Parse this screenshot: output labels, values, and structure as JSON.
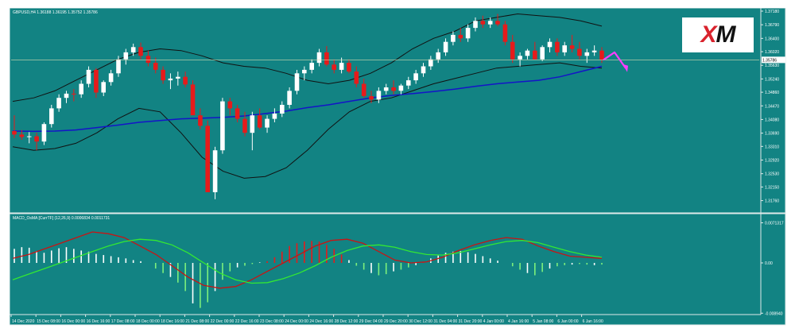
{
  "symbol_header": "GBPUSD,H4 1.36188 1.36195 1.35752 1.35786",
  "indicator_header": "MACD_OsMA [CurrTF] (12,26,9) 0.0006834 0.0011731",
  "logo": {
    "mark": "X",
    "text": "M"
  },
  "colors": {
    "background": "#ffffff",
    "plot": "#128383",
    "grid_border": "#dfe9e9",
    "bull_candle": "#ffffff",
    "bear_candle": "#e61b1b",
    "bands": "#111111",
    "ma": "#1414c8",
    "macd_line": "#c81414",
    "signal_line": "#33e833",
    "hist_pos": "#ffffff",
    "hist_neg": "#7cf07c",
    "forecast_arrow": "#ff3cff",
    "price_line": "#d4dcb0"
  },
  "chart_data": [
    {
      "type": "candlestick",
      "series_desc": "GBPUSD H4",
      "ylim": [
        1.315,
        1.3718
      ],
      "y_ticks": [
        "1.37180",
        "1.36790",
        "1.36400",
        "1.36020",
        "1.35630",
        "1.35240",
        "1.34860",
        "1.34470",
        "1.34080",
        "1.33690",
        "1.33310",
        "1.32920",
        "1.32530",
        "1.32150",
        "1.31760"
      ],
      "y_tick_values": [
        1.3718,
        1.3679,
        1.364,
        1.3602,
        1.3563,
        1.3524,
        1.3486,
        1.3447,
        1.3408,
        1.3369,
        1.3331,
        1.3292,
        1.3253,
        1.3215,
        1.3176
      ],
      "current_price_label": "1.35786",
      "current_price": 1.35786,
      "x_ticks": [
        "14 Dec 2020",
        "15 Dec 08:00",
        "16 Dec 00:00",
        "16 Dec 16:00",
        "17 Dec 08:00",
        "18 Dec 00:00",
        "18 Dec 16:00",
        "21 Dec 08:00",
        "22 Dec 00:00",
        "22 Dec 16:00",
        "23 Dec 08:00",
        "24 Dec 00:00",
        "24 Dec 16:00",
        "28 Dec 12:00",
        "29 Dec 04:00",
        "29 Dec 20:00",
        "30 Dec 12:00",
        "31 Dec 04:00",
        "31 Dec 20:00",
        "4 Jan 00:00",
        "4 Jan 16:00",
        "5 Jan 08:00",
        "6 Jan 00:00",
        "6 Jan 16:00"
      ],
      "candles_ohlc": [
        [
          1.3375,
          1.342,
          1.3355,
          1.3365
        ],
        [
          1.3365,
          1.3378,
          1.335,
          1.3358
        ],
        [
          1.3358,
          1.3372,
          1.334,
          1.336
        ],
        [
          1.336,
          1.337,
          1.332,
          1.3345
        ],
        [
          1.3345,
          1.34,
          1.3335,
          1.3395
        ],
        [
          1.3395,
          1.345,
          1.3385,
          1.344
        ],
        [
          1.344,
          1.348,
          1.343,
          1.347
        ],
        [
          1.347,
          1.349,
          1.3455,
          1.3482
        ],
        [
          1.3482,
          1.3495,
          1.346,
          1.348
        ],
        [
          1.348,
          1.352,
          1.347,
          1.351
        ],
        [
          1.351,
          1.356,
          1.35,
          1.355
        ],
        [
          1.355,
          1.3555,
          1.347,
          1.3485
        ],
        [
          1.3485,
          1.352,
          1.3475,
          1.3515
        ],
        [
          1.3515,
          1.355,
          1.3505,
          1.354
        ],
        [
          1.354,
          1.359,
          1.353,
          1.358
        ],
        [
          1.358,
          1.361,
          1.3565,
          1.36
        ],
        [
          1.36,
          1.3625,
          1.359,
          1.3615
        ],
        [
          1.3615,
          1.3628,
          1.358,
          1.359
        ],
        [
          1.359,
          1.3605,
          1.356,
          1.357
        ],
        [
          1.357,
          1.3585,
          1.354,
          1.355
        ],
        [
          1.355,
          1.356,
          1.351,
          1.352
        ],
        [
          1.352,
          1.354,
          1.3495,
          1.3525
        ],
        [
          1.3525,
          1.3545,
          1.3505,
          1.353
        ],
        [
          1.353,
          1.3545,
          1.35,
          1.3508
        ],
        [
          1.3508,
          1.352,
          1.346,
          1.342
        ],
        [
          1.342,
          1.344,
          1.338,
          1.339
        ],
        [
          1.339,
          1.3405,
          1.324,
          1.32
        ],
        [
          1.32,
          1.333,
          1.318,
          1.332
        ],
        [
          1.332,
          1.347,
          1.331,
          1.346
        ],
        [
          1.346,
          1.347,
          1.342,
          1.344
        ],
        [
          1.344,
          1.345,
          1.34,
          1.341
        ],
        [
          1.341,
          1.343,
          1.336,
          1.337
        ],
        [
          1.337,
          1.343,
          1.332,
          1.342
        ],
        [
          1.342,
          1.344,
          1.338,
          1.3385
        ],
        [
          1.3385,
          1.342,
          1.337,
          1.341
        ],
        [
          1.341,
          1.344,
          1.34,
          1.3425
        ],
        [
          1.3425,
          1.346,
          1.3415,
          1.345
        ],
        [
          1.345,
          1.35,
          1.344,
          1.349
        ],
        [
          1.349,
          1.355,
          1.348,
          1.354
        ],
        [
          1.354,
          1.356,
          1.352,
          1.355
        ],
        [
          1.355,
          1.358,
          1.354,
          1.357
        ],
        [
          1.357,
          1.361,
          1.356,
          1.36
        ],
        [
          1.36,
          1.3618,
          1.356,
          1.3565
        ],
        [
          1.3565,
          1.358,
          1.354,
          1.355
        ],
        [
          1.355,
          1.3585,
          1.354,
          1.357
        ],
        [
          1.357,
          1.358,
          1.354,
          1.3545
        ],
        [
          1.3545,
          1.356,
          1.35,
          1.351
        ],
        [
          1.351,
          1.3525,
          1.347,
          1.3475
        ],
        [
          1.3475,
          1.349,
          1.3455,
          1.3465
        ],
        [
          1.3465,
          1.35,
          1.3455,
          1.349
        ],
        [
          1.349,
          1.351,
          1.348,
          1.35
        ],
        [
          1.35,
          1.352,
          1.348,
          1.349
        ],
        [
          1.349,
          1.351,
          1.348,
          1.3505
        ],
        [
          1.3505,
          1.353,
          1.3495,
          1.352
        ],
        [
          1.352,
          1.355,
          1.351,
          1.354
        ],
        [
          1.354,
          1.357,
          1.353,
          1.356
        ],
        [
          1.356,
          1.359,
          1.355,
          1.358
        ],
        [
          1.358,
          1.361,
          1.357,
          1.36
        ],
        [
          1.36,
          1.364,
          1.359,
          1.363
        ],
        [
          1.363,
          1.366,
          1.362,
          1.365
        ],
        [
          1.365,
          1.367,
          1.363,
          1.364
        ],
        [
          1.364,
          1.368,
          1.363,
          1.367
        ],
        [
          1.367,
          1.37,
          1.366,
          1.369
        ],
        [
          1.369,
          1.3705,
          1.367,
          1.368
        ],
        [
          1.368,
          1.37,
          1.367,
          1.369
        ],
        [
          1.369,
          1.371,
          1.3675,
          1.368
        ],
        [
          1.368,
          1.369,
          1.362,
          1.363
        ],
        [
          1.363,
          1.365,
          1.357,
          1.358
        ],
        [
          1.358,
          1.36,
          1.356,
          1.359
        ],
        [
          1.359,
          1.361,
          1.358,
          1.3605
        ],
        [
          1.3605,
          1.363,
          1.3595,
          1.358
        ],
        [
          1.358,
          1.362,
          1.3575,
          1.3615
        ],
        [
          1.3615,
          1.364,
          1.36,
          1.363
        ],
        [
          1.363,
          1.364,
          1.359,
          1.36
        ],
        [
          1.36,
          1.363,
          1.359,
          1.362
        ],
        [
          1.362,
          1.365,
          1.36,
          1.361
        ],
        [
          1.361,
          1.363,
          1.358,
          1.359
        ],
        [
          1.359,
          1.361,
          1.357,
          1.36
        ],
        [
          1.36,
          1.362,
          1.359,
          1.3605
        ],
        [
          1.3605,
          1.3615,
          1.357,
          1.35786
        ]
      ],
      "bollinger_upper": [
        1.346,
        1.347,
        1.349,
        1.352,
        1.355,
        1.358,
        1.36,
        1.361,
        1.3605,
        1.359,
        1.357,
        1.356,
        1.3555,
        1.354,
        1.352,
        1.351,
        1.352,
        1.354,
        1.357,
        1.361,
        1.364,
        1.366,
        1.369,
        1.37,
        1.371,
        1.3705,
        1.37,
        1.369,
        1.3675
      ],
      "bollinger_lower": [
        1.333,
        1.332,
        1.3325,
        1.334,
        1.337,
        1.341,
        1.344,
        1.343,
        1.337,
        1.33,
        1.326,
        1.324,
        1.3245,
        1.327,
        1.332,
        1.338,
        1.343,
        1.346,
        1.347,
        1.349,
        1.351,
        1.3525,
        1.354,
        1.3555,
        1.356,
        1.3565,
        1.357,
        1.356,
        1.3555
      ],
      "moving_average": [
        1.3375,
        1.3374,
        1.3375,
        1.3378,
        1.3385,
        1.3392,
        1.34,
        1.3405,
        1.341,
        1.3412,
        1.3414,
        1.3418,
        1.3425,
        1.3432,
        1.3442,
        1.345,
        1.346,
        1.347,
        1.3477,
        1.3482,
        1.3488,
        1.3495,
        1.3503,
        1.351,
        1.3515,
        1.352,
        1.353,
        1.3545,
        1.356
      ],
      "forecast_points": [
        [
          0,
          1.35786
        ],
        [
          1,
          1.36
        ],
        [
          2,
          1.3555
        ]
      ]
    },
    {
      "type": "macd",
      "series_desc": "MACD_OsMA (12,26,9)",
      "ylim": [
        -0.0089,
        0.0072
      ],
      "y_ticks": [
        "0.0071317",
        "0.00",
        "-0.008940"
      ],
      "y_tick_values": [
        0.0071317,
        0.0,
        -0.00894
      ],
      "histogram": [
        0.0025,
        0.0028,
        0.0027,
        0.0021,
        0.0018,
        0.0022,
        0.0026,
        0.0028,
        0.0025,
        0.0022,
        0.002,
        0.0016,
        0.0014,
        0.0012,
        0.001,
        0.0008,
        0.0005,
        0.0003,
        0.0,
        -0.001,
        -0.0018,
        -0.0025,
        -0.0035,
        -0.005,
        -0.0072,
        -0.008,
        -0.007,
        -0.005,
        -0.003,
        -0.0015,
        -0.0008,
        -0.0005,
        -0.0002,
        0.0001,
        0.0003,
        0.001,
        0.002,
        0.003,
        0.0035,
        0.0038,
        0.0039,
        0.0038,
        0.0032,
        0.0025,
        0.0015,
        0.0005,
        -0.0005,
        -0.0012,
        -0.0018,
        -0.0022,
        -0.002,
        -0.0015,
        -0.0012,
        -0.0008,
        -0.0004,
        0.0002,
        0.0008,
        0.0013,
        0.0018,
        0.002,
        0.0021,
        0.0019,
        0.0016,
        0.0012,
        0.0008,
        0.0004,
        0.0,
        -0.0006,
        -0.0012,
        -0.0018,
        -0.0022,
        -0.0016,
        -0.001,
        -0.0006,
        -0.0004,
        -0.0003,
        -0.0002,
        -0.0003,
        -0.0004,
        -0.0003
      ],
      "macd_line": [
        0.0008,
        0.0015,
        0.0025,
        0.0035,
        0.0045,
        0.0055,
        0.0052,
        0.0045,
        0.003,
        0.0015,
        -0.0005,
        -0.0025,
        -0.004,
        -0.0045,
        -0.0042,
        -0.003,
        -0.0015,
        0.0,
        0.0015,
        0.003,
        0.004,
        0.0042,
        0.0035,
        0.002,
        0.0005,
        0.0,
        0.0002,
        0.001,
        0.0022,
        0.0032,
        0.004,
        0.0045,
        0.0042,
        0.003,
        0.002,
        0.0012,
        0.001,
        0.0008
      ],
      "signal_line": [
        -0.003,
        -0.002,
        -0.001,
        0.0,
        0.001,
        0.002,
        0.003,
        0.0038,
        0.0042,
        0.004,
        0.0032,
        0.0018,
        0.0,
        -0.0018,
        -0.003,
        -0.0036,
        -0.0035,
        -0.0028,
        -0.0018,
        -0.0005,
        0.001,
        0.0022,
        0.003,
        0.0032,
        0.0028,
        0.002,
        0.0015,
        0.0014,
        0.0018,
        0.0025,
        0.0032,
        0.0038,
        0.004,
        0.0036,
        0.0028,
        0.002,
        0.0014,
        0.001
      ]
    }
  ]
}
